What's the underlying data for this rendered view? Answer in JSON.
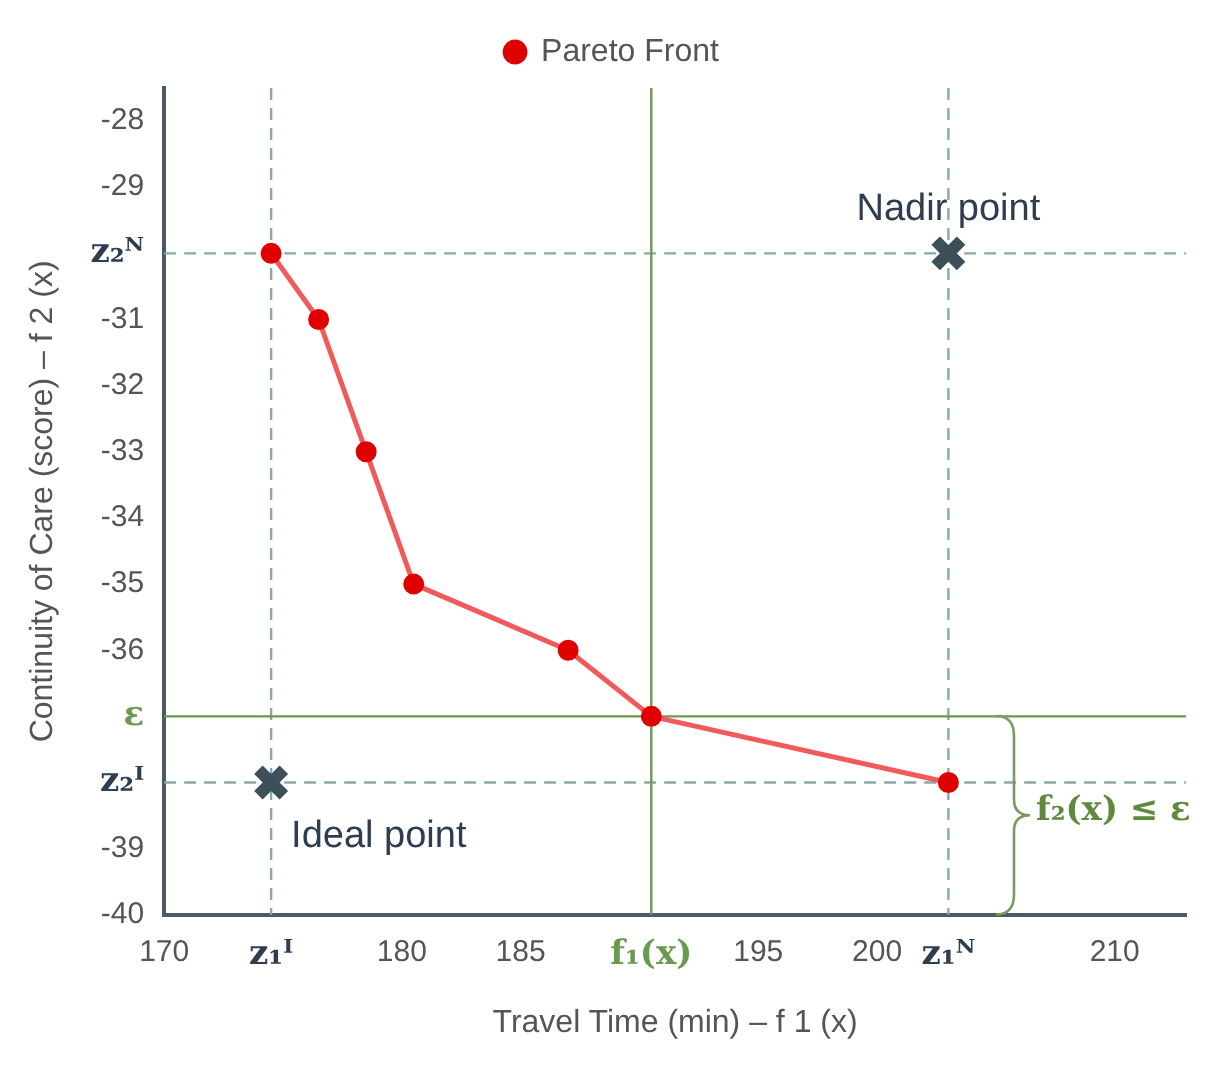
{
  "chart_data": {
    "type": "line",
    "xlabel": "Travel Time (min) – f 1 (x)",
    "ylabel": "Continuity of Care (score) – f 2 (x)",
    "xlim": [
      170,
      213
    ],
    "ylim": [
      -40,
      -27.5
    ],
    "xticks": [
      170,
      {
        "value": 174.5,
        "label": "z₁ᴵ"
      },
      180,
      185,
      {
        "value": 190.5,
        "label": "f₁(x)"
      },
      195,
      200,
      {
        "value": 203,
        "label": "z₁ᴺ"
      },
      210
    ],
    "yticks": [
      -28,
      -29,
      {
        "value": -30,
        "label": "z₂ᴺ"
      },
      -31,
      -32,
      -33,
      -34,
      -35,
      -36,
      {
        "value": -37,
        "label": "ε"
      },
      {
        "value": -38,
        "label": "z₂ᴵ"
      },
      -39,
      -40
    ],
    "grid": false,
    "legend": "top",
    "series": [
      {
        "name": "Pareto Front",
        "type": "line",
        "color": "#f05a5a",
        "marker": "circle",
        "x": [
          174.5,
          176.5,
          178.5,
          180.5,
          187,
          190.5,
          203
        ],
        "values": [
          -30,
          -31,
          -33,
          -35,
          -36,
          -37,
          -38
        ]
      },
      {
        "name": "Nadir point",
        "type": "scatter",
        "color": "#3d4f58",
        "marker": "cross",
        "x": [
          203
        ],
        "values": [
          -30
        ]
      },
      {
        "name": "Ideal point",
        "type": "scatter",
        "color": "#3d4f58",
        "marker": "cross",
        "x": [
          174.5
        ],
        "values": [
          -38
        ]
      }
    ],
    "ref_lines": [
      {
        "axis": "y",
        "value": -30,
        "color": "#8aa8a8",
        "line_style": "dashed"
      },
      {
        "axis": "y",
        "value": -38,
        "color": "#8aa8a8",
        "line_style": "dashed"
      },
      {
        "axis": "x",
        "value": 174.5,
        "color": "#8aa8a8",
        "line_style": "dashed"
      },
      {
        "axis": "x",
        "value": 203,
        "color": "#8aa8a8",
        "line_style": "dashed"
      },
      {
        "axis": "y",
        "value": -37,
        "color": "#6a9a50",
        "line_style": "solid"
      },
      {
        "axis": "x",
        "value": 190.5,
        "color": "#6a9a50",
        "line_style": "solid"
      }
    ],
    "annotations": [
      "f₂(x) ≤ ε"
    ]
  }
}
